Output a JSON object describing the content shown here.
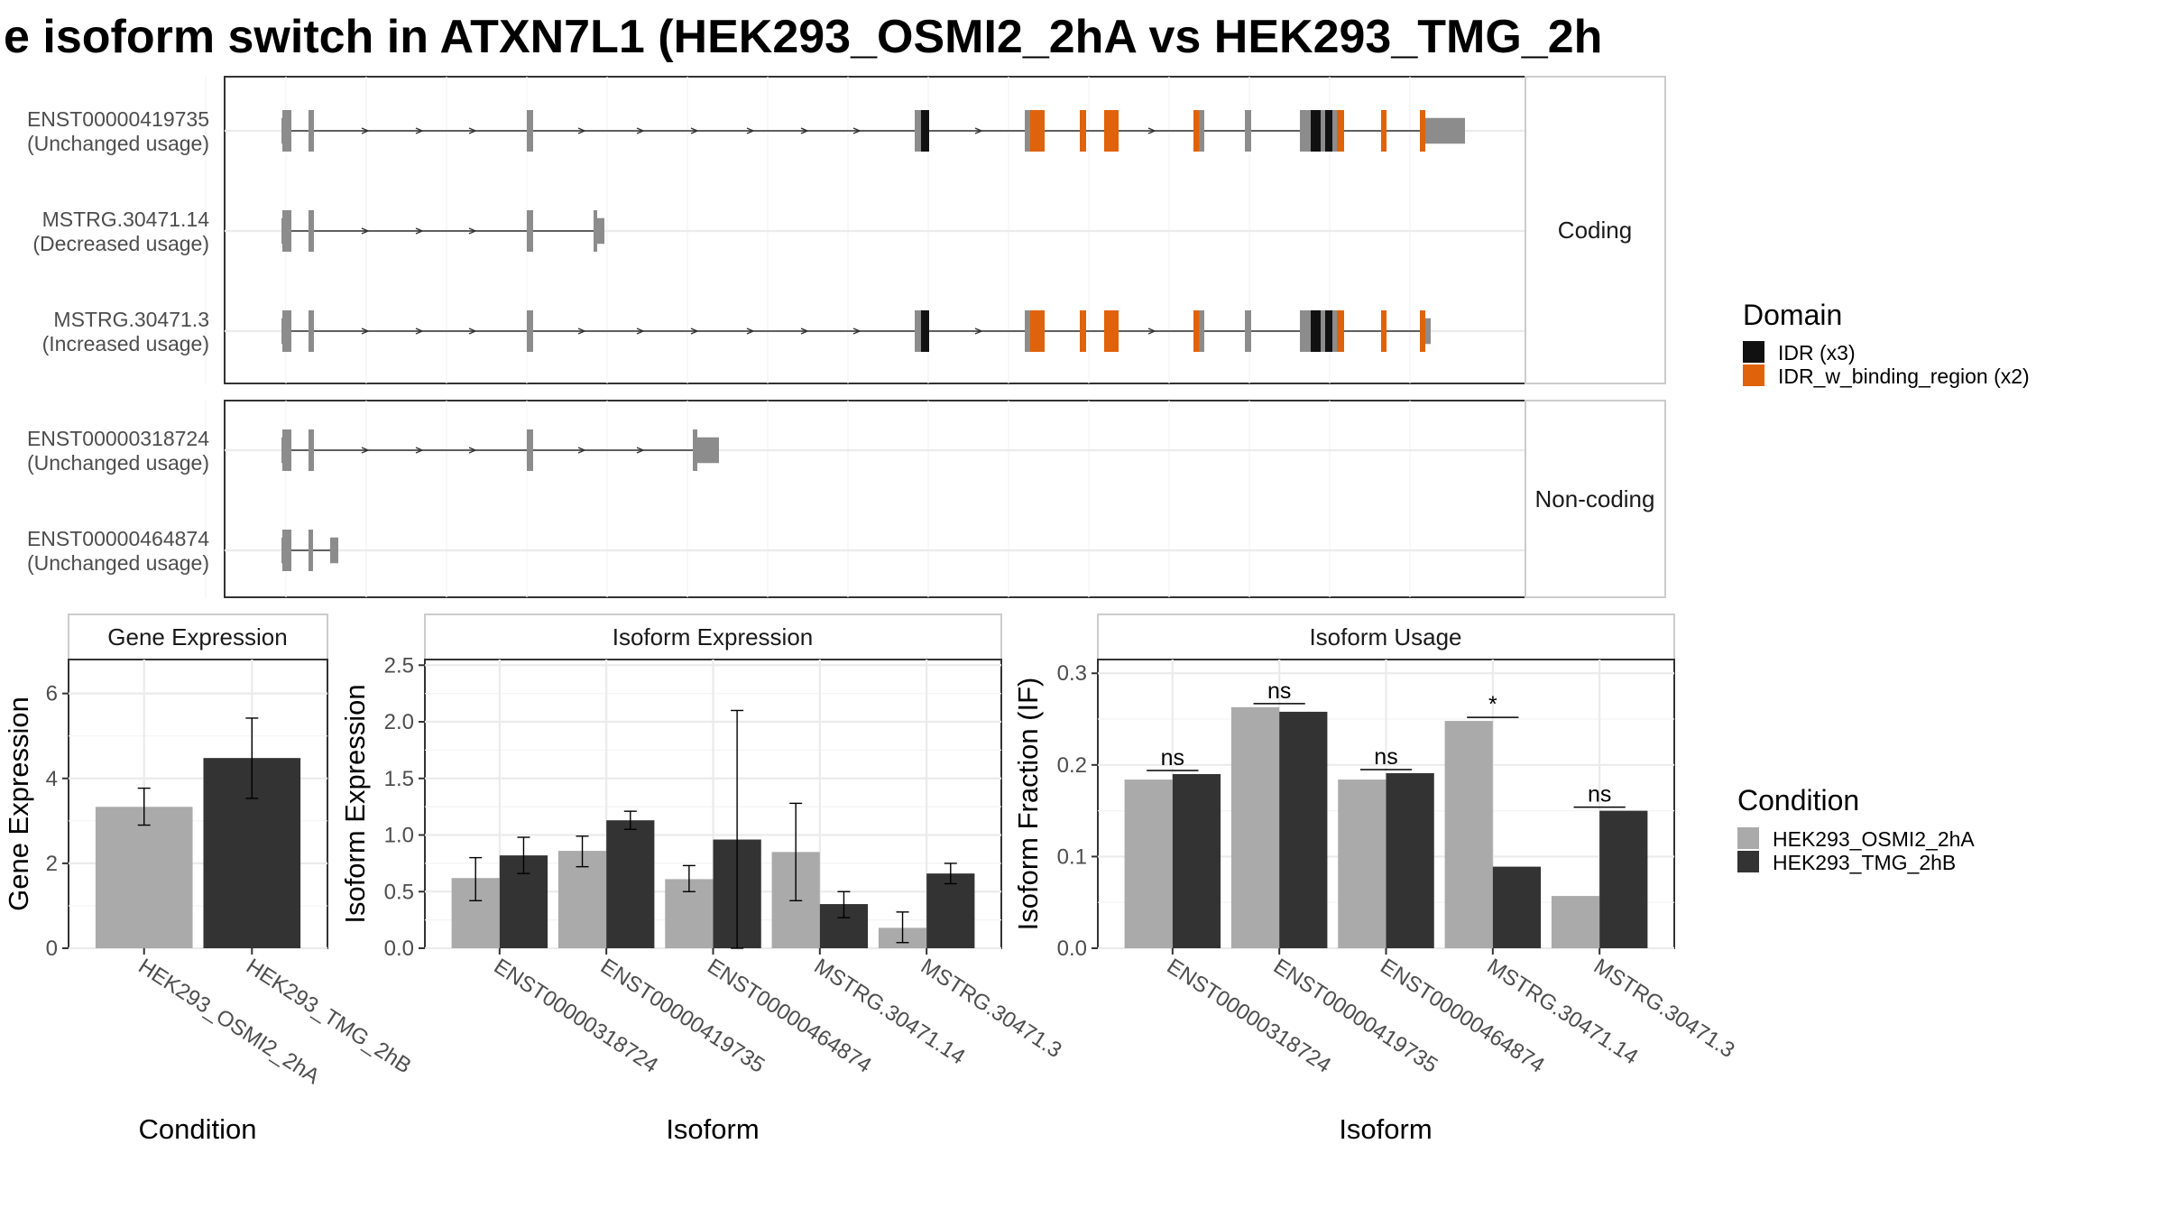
{
  "title": "e isoform switch in ATXN7L1 (HEK293_OSMI2_2hA vs HEK293_TMG_2h",
  "colors": {
    "cond1": "#aaaaaa",
    "cond2": "#333333",
    "exon": "#8c8c8c",
    "idr": "#111111",
    "idr_binding": "#e0620b",
    "intron": "#333333"
  },
  "structure": {
    "groups": [
      {
        "label": "Coding",
        "transcripts": [
          {
            "name": "ENST00000419735",
            "status": "(Unchanged usage)"
          },
          {
            "name": "MSTRG.30471.14",
            "status": "(Decreased usage)"
          },
          {
            "name": "MSTRG.30471.3",
            "status": "(Increased usage)"
          }
        ]
      },
      {
        "label": "Non-coding",
        "transcripts": [
          {
            "name": "ENST00000318724",
            "status": "(Unchanged usage)"
          },
          {
            "name": "ENST00000464874",
            "status": "(Unchanged usage)"
          }
        ]
      }
    ]
  },
  "legend_domain": {
    "title": "Domain",
    "items": [
      {
        "label": "IDR (x3)",
        "color": "#111111"
      },
      {
        "label": "IDR_w_binding_region (x2)",
        "color": "#e0620b"
      }
    ]
  },
  "legend_condition": {
    "title": "Condition",
    "items": [
      {
        "label": "HEK293_OSMI2_2hA",
        "color": "#aaaaaa"
      },
      {
        "label": "HEK293_TMG_2hB",
        "color": "#333333"
      }
    ]
  },
  "chart_data": [
    {
      "type": "bar",
      "panel": "Gene Expression",
      "xlabel": "Condition",
      "ylabel": "Gene Expression",
      "categories": [
        "HEK293_OSMI2_2hA",
        "HEK293_TMG_2hB"
      ],
      "values": [
        3.33,
        4.48
      ],
      "errors": [
        [
          2.9,
          3.77
        ],
        [
          3.53,
          5.42
        ]
      ],
      "ylim": [
        0,
        6.8
      ],
      "yticks": [
        0,
        2,
        4,
        6
      ],
      "grid": true
    },
    {
      "type": "bar",
      "panel": "Isoform Expression",
      "xlabel": "Isoform",
      "ylabel": "Isoform Expression",
      "categories": [
        "ENST00000318724",
        "ENST00000419735",
        "ENST00000464874",
        "MSTRG.30471.14",
        "MSTRG.30471.3"
      ],
      "ylim": [
        0,
        2.55
      ],
      "yticks": [
        0.0,
        0.5,
        1.0,
        1.5,
        2.0,
        2.5
      ],
      "grid": true,
      "series": [
        {
          "name": "HEK293_OSMI2_2hA",
          "values": [
            0.62,
            0.86,
            0.61,
            0.85,
            0.18
          ],
          "errors": [
            [
              0.42,
              0.8
            ],
            [
              0.72,
              0.99
            ],
            [
              0.5,
              0.73
            ],
            [
              0.42,
              1.28
            ],
            [
              0.05,
              0.32
            ]
          ]
        },
        {
          "name": "HEK293_TMG_2hB",
          "values": [
            0.82,
            1.13,
            0.96,
            0.39,
            0.66
          ],
          "errors": [
            [
              0.66,
              0.98
            ],
            [
              1.05,
              1.21
            ],
            [
              0.0,
              2.1
            ],
            [
              0.27,
              0.5
            ],
            [
              0.57,
              0.75
            ]
          ]
        }
      ]
    },
    {
      "type": "bar",
      "panel": "Isoform Usage",
      "xlabel": "Isoform",
      "ylabel": "Isoform Fraction (IF)",
      "categories": [
        "ENST00000318724",
        "ENST00000419735",
        "ENST00000464874",
        "MSTRG.30471.14",
        "MSTRG.30471.3"
      ],
      "ylim": [
        0,
        0.315
      ],
      "yticks": [
        0.0,
        0.1,
        0.2,
        0.3
      ],
      "grid": true,
      "series": [
        {
          "name": "HEK293_OSMI2_2hA",
          "values": [
            0.184,
            0.263,
            0.184,
            0.248,
            0.057
          ]
        },
        {
          "name": "HEK293_TMG_2hB",
          "values": [
            0.19,
            0.258,
            0.191,
            0.089,
            0.15
          ]
        }
      ],
      "significance": [
        "ns",
        "ns",
        "ns",
        "*",
        "ns"
      ]
    }
  ]
}
